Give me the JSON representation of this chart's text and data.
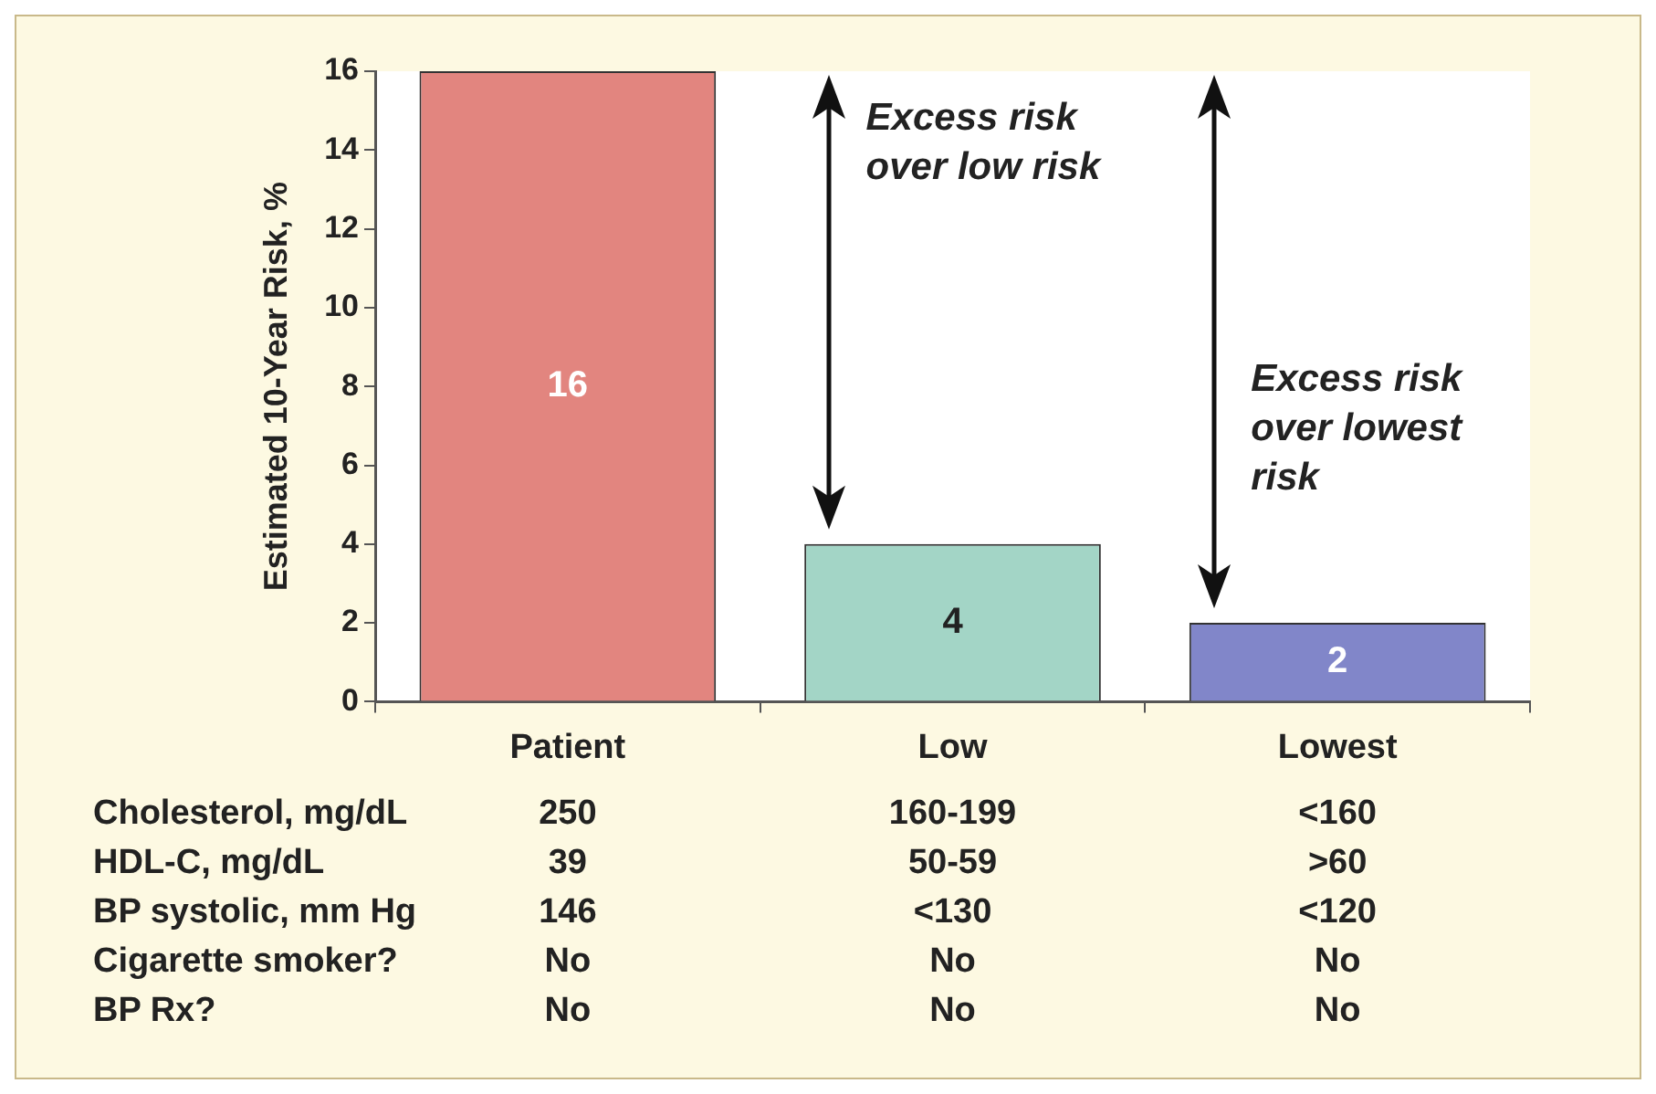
{
  "chart_data": {
    "type": "bar",
    "ylabel": "Estimated 10-Year Risk, %",
    "categories": [
      "Patient",
      "Low",
      "Lowest"
    ],
    "values": [
      16,
      4,
      2
    ],
    "colors": [
      "#e2857f",
      "#a3d5c6",
      "#8186c9"
    ],
    "ylim": [
      0,
      16
    ],
    "yticks": [
      0,
      2,
      4,
      6,
      8,
      10,
      12,
      14,
      16
    ],
    "grid": false,
    "legend": false,
    "data_labels": true,
    "annotations": [
      "Excess risk over low risk",
      "Excess risk over lowest risk",
      "Cholesterol, mg/dL",
      "250",
      "160-199",
      "<160",
      "HDL-C, mg/dL",
      "39",
      "50-59",
      ">60",
      "BP systolic, mm Hg",
      "146",
      "<130",
      "<120",
      "Cigarette smoker?",
      "No",
      "No",
      "No",
      "BP Rx?",
      "No",
      "No",
      "No"
    ]
  }
}
